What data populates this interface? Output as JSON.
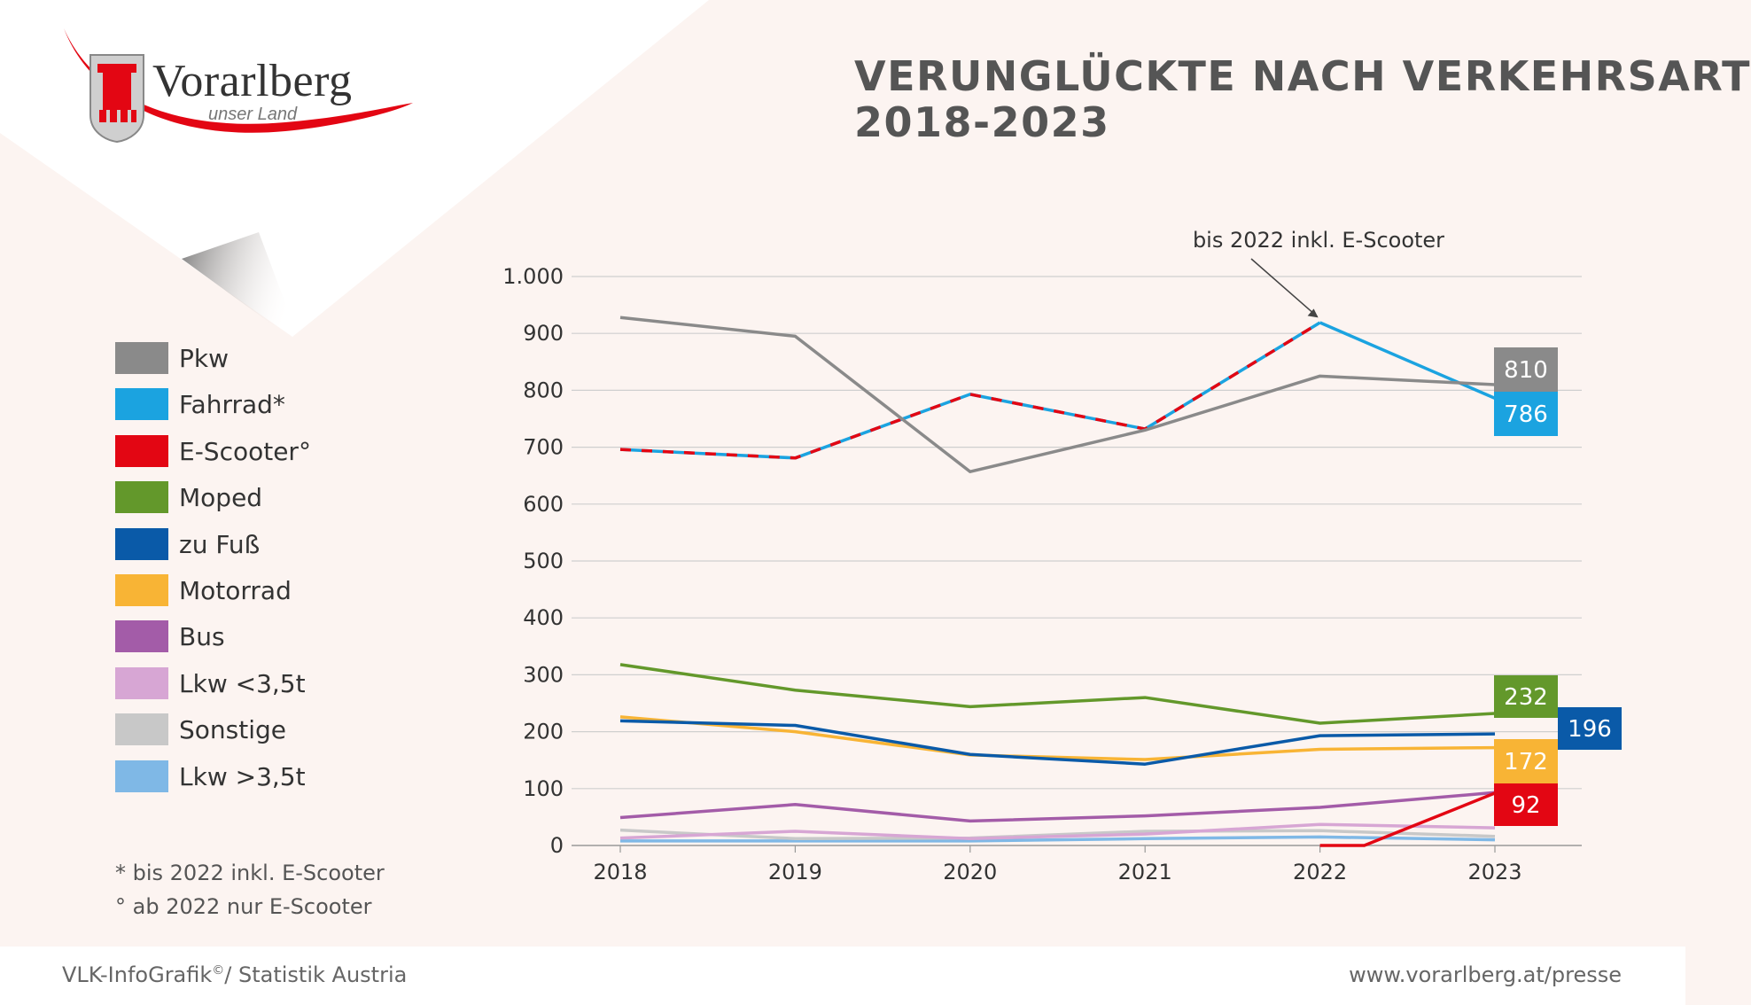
{
  "brand": {
    "name": "Vorarlberg",
    "tagline": "unser Land"
  },
  "title_line1": "VERUNGLÜCKTE NACH VERKEHRSART",
  "title_line2": "2018-2023",
  "footnotes": {
    "line1": "* bis 2022 inkl. E-Scooter",
    "line2": "° ab 2022 nur E-Scooter"
  },
  "source_text": "VLK-InfoGrafik",
  "source_sup": "©",
  "source_rest": "/ Statistik Austria",
  "website": "www.vorarlberg.at/presse",
  "colors": {
    "background": "#fcf4f1",
    "grid": "#cfcfcf",
    "axis": "#999999",
    "brand_red": "#e30613"
  },
  "chart_data": {
    "type": "line",
    "title": "VERUNGLÜCKTE NACH VERKEHRSART 2018-2023",
    "xlabel": "",
    "ylabel": "",
    "x": [
      "2018",
      "2019",
      "2020",
      "2021",
      "2022",
      "2023"
    ],
    "ylim": [
      0,
      1000
    ],
    "yticks": [
      0,
      100,
      200,
      300,
      400,
      500,
      600,
      700,
      800,
      900,
      1000
    ],
    "ytick_labels": [
      "0",
      "100",
      "200",
      "300",
      "400",
      "500",
      "600",
      "700",
      "800",
      "900",
      "1.000"
    ],
    "grid": true,
    "legend_position": "left",
    "annotation": {
      "text": "bis 2022 inkl. E-Scooter",
      "target_x": "2022",
      "target_y": 920
    },
    "series": [
      {
        "name": "Pkw",
        "color": "#8a8a8a",
        "values": [
          928,
          895,
          657,
          730,
          825,
          810
        ],
        "end_label": "810"
      },
      {
        "name": "Fahrrad*",
        "color": "#1ba3e0",
        "values": [
          696,
          681,
          793,
          732,
          919,
          786
        ],
        "end_label": "786",
        "dashed_with": "#e30613",
        "dashed_until_index": 4
      },
      {
        "name": "E-Scooter°",
        "color": "#e30613",
        "values": [
          null,
          null,
          null,
          null,
          0,
          92
        ],
        "end_label": "92"
      },
      {
        "name": "Moped",
        "color": "#63982b",
        "values": [
          318,
          273,
          244,
          260,
          215,
          232
        ],
        "end_label": "232"
      },
      {
        "name": "zu Fuß",
        "color": "#0a5aa8",
        "values": [
          219,
          211,
          160,
          143,
          193,
          196
        ],
        "end_label": "196"
      },
      {
        "name": "Motorrad",
        "color": "#f8b435",
        "values": [
          226,
          200,
          159,
          151,
          169,
          172
        ],
        "end_label": "172"
      },
      {
        "name": "Bus",
        "color": "#a35ca8",
        "values": [
          49,
          72,
          43,
          52,
          67,
          93
        ],
        "end_label": ""
      },
      {
        "name": "Lkw <3,5t",
        "color": "#d7a6d4",
        "values": [
          13,
          25,
          12,
          20,
          37,
          31
        ],
        "end_label": ""
      },
      {
        "name": "Sonstige",
        "color": "#c8c8c8",
        "values": [
          27,
          12,
          13,
          25,
          26,
          16
        ],
        "end_label": ""
      },
      {
        "name": "Lkw >3,5t",
        "color": "#7fb8e6",
        "values": [
          8,
          8,
          8,
          12,
          15,
          10
        ],
        "end_label": ""
      }
    ]
  }
}
